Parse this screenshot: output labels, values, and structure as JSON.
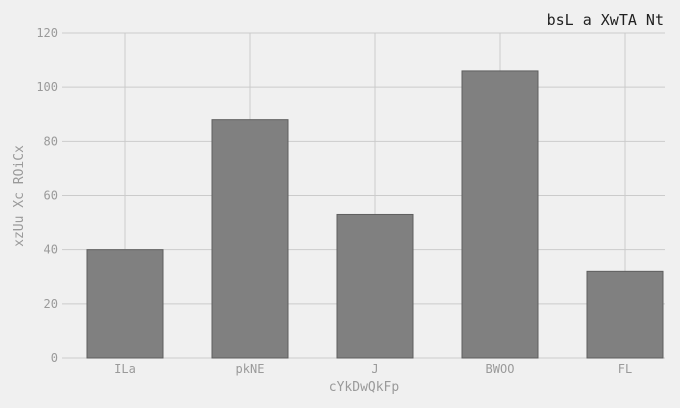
{
  "chart_data": {
    "type": "bar",
    "title": "bsL a XwTA Nt",
    "xlabel": "cYkDwQkFp",
    "ylabel": "xzUu Xc ROiCx",
    "categories": [
      "ILa",
      "pkNE",
      "J",
      "BWOO",
      "FL"
    ],
    "values": [
      40,
      88,
      53,
      106,
      32
    ],
    "ylim": [
      0,
      120
    ],
    "yticks": [
      0,
      20,
      40,
      60,
      80,
      100,
      120
    ],
    "grid": true,
    "bar_color": "#808080",
    "bar_edge_color": "#5e5e5e",
    "grid_color": "#cbcbcb",
    "background": "#f0f0f0"
  }
}
